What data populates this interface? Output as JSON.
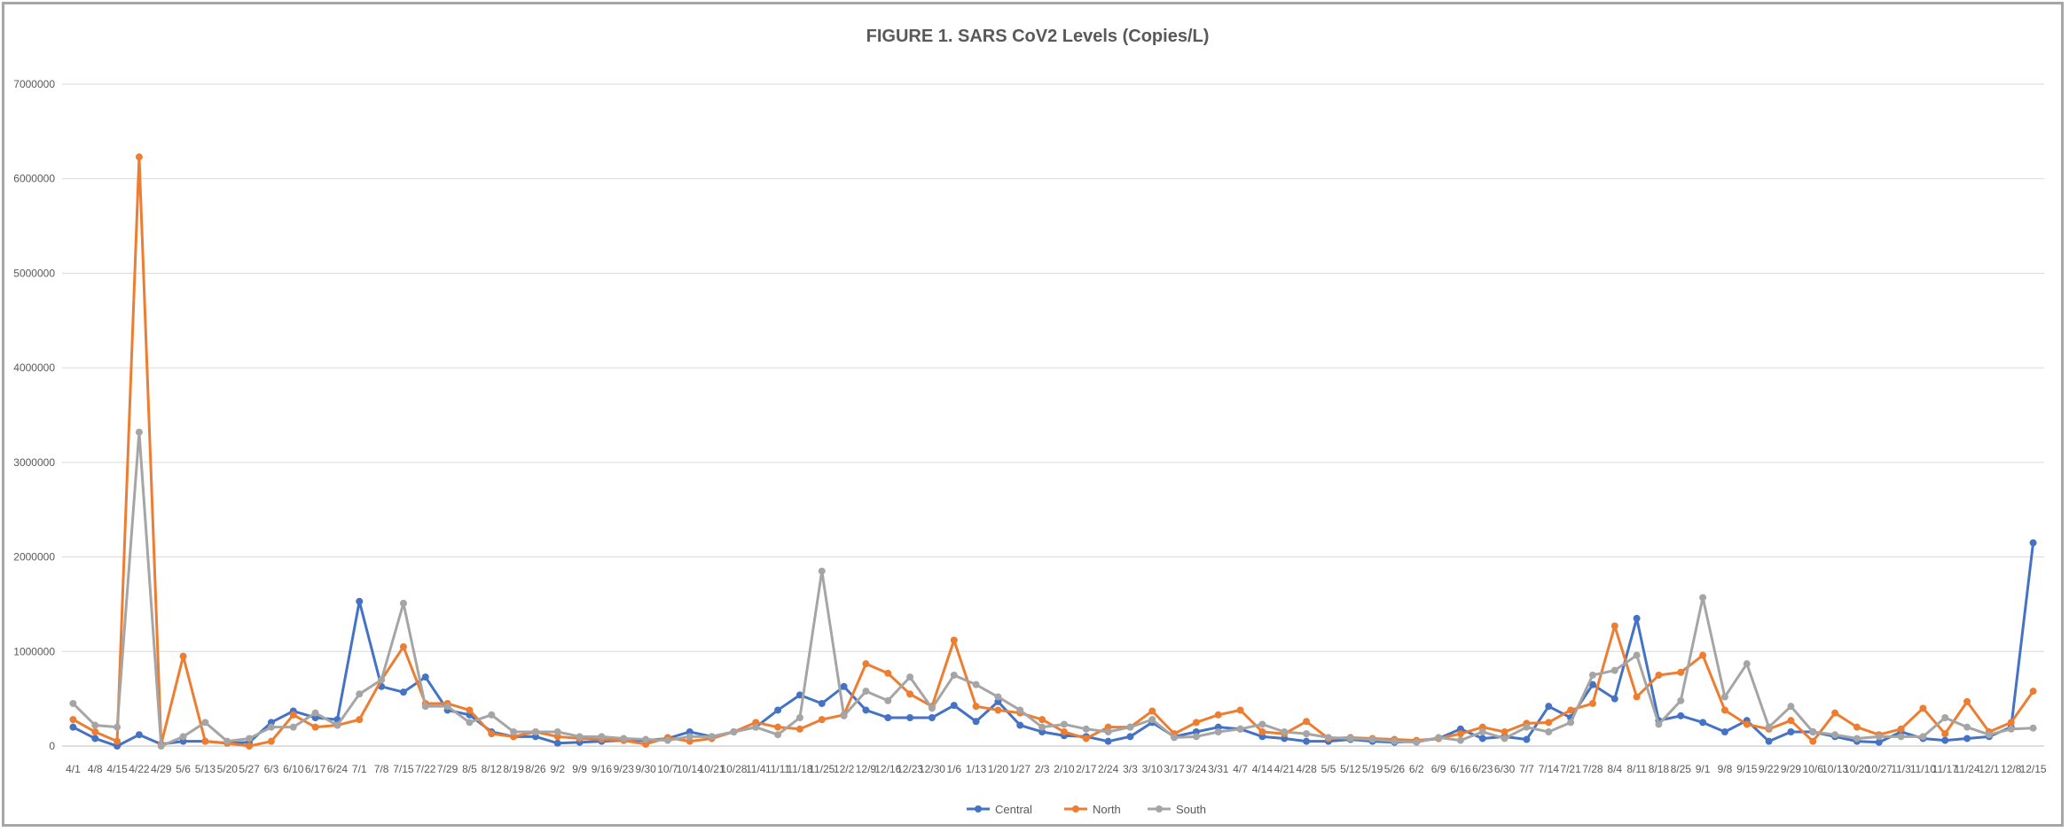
{
  "chart_data": {
    "type": "line",
    "title": "FIGURE 1.  SARS CoV2 Levels (Copies/L)",
    "xlabel": "",
    "ylabel": "",
    "ylim": [
      0,
      7000000
    ],
    "yticks": [
      0,
      1000000,
      2000000,
      3000000,
      4000000,
      5000000,
      6000000,
      7000000
    ],
    "ytick_labels": [
      "0",
      "1000000",
      "2000000",
      "3000000",
      "4000000",
      "5000000",
      "6000000",
      "7000000"
    ],
    "grid": true,
    "legend_position": "bottom",
    "categories": [
      "4/1",
      "4/8",
      "4/15",
      "4/22",
      "4/29",
      "5/6",
      "5/13",
      "5/20",
      "5/27",
      "6/3",
      "6/10",
      "6/17",
      "6/24",
      "7/1",
      "7/8",
      "7/15",
      "7/22",
      "7/29",
      "8/5",
      "8/12",
      "8/19",
      "8/26",
      "9/2",
      "9/9",
      "9/16",
      "9/23",
      "9/30",
      "10/7",
      "10/14",
      "10/21",
      "10/28",
      "11/4",
      "11/11",
      "11/18",
      "11/25",
      "12/2",
      "12/9",
      "12/16",
      "12/23",
      "12/30",
      "1/6",
      "1/13",
      "1/20",
      "1/27",
      "2/3",
      "2/10",
      "2/17",
      "2/24",
      "3/3",
      "3/10",
      "3/17",
      "3/24",
      "3/31",
      "4/7",
      "4/14",
      "4/21",
      "4/28",
      "5/5",
      "5/12",
      "5/19",
      "5/26",
      "6/2",
      "6/9",
      "6/16",
      "6/23",
      "6/30",
      "7/7",
      "7/14",
      "7/21",
      "7/28",
      "8/4",
      "8/11",
      "8/18",
      "8/25",
      "9/1",
      "9/8",
      "9/15",
      "9/22",
      "9/29",
      "10/6",
      "10/13",
      "10/20",
      "10/27",
      "11/3",
      "11/10",
      "11/17",
      "11/24",
      "12/1",
      "12/8",
      "12/15"
    ],
    "series": [
      {
        "name": "Central",
        "color": "#4472c4",
        "values": [
          200000,
          80000,
          0,
          120000,
          20000,
          50000,
          50000,
          30000,
          40000,
          250000,
          370000,
          300000,
          280000,
          1530000,
          630000,
          570000,
          730000,
          380000,
          330000,
          150000,
          100000,
          100000,
          30000,
          40000,
          50000,
          60000,
          60000,
          80000,
          150000,
          100000,
          150000,
          200000,
          380000,
          540000,
          450000,
          630000,
          380000,
          300000,
          300000,
          300000,
          430000,
          260000,
          470000,
          220000,
          150000,
          110000,
          100000,
          50000,
          100000,
          250000,
          100000,
          150000,
          200000,
          180000,
          100000,
          80000,
          50000,
          50000,
          70000,
          50000,
          40000,
          50000,
          80000,
          180000,
          80000,
          100000,
          70000,
          420000,
          300000,
          650000,
          500000,
          1350000,
          270000,
          320000,
          250000,
          150000,
          270000,
          50000,
          150000,
          150000,
          100000,
          50000,
          40000,
          150000,
          80000,
          60000,
          80000,
          100000,
          200000,
          2150000
        ]
      },
      {
        "name": "North",
        "color": "#ed7d31",
        "values": [
          280000,
          150000,
          50000,
          6230000,
          20000,
          950000,
          50000,
          30000,
          0,
          50000,
          330000,
          200000,
          220000,
          280000,
          700000,
          1050000,
          450000,
          450000,
          380000,
          130000,
          100000,
          150000,
          100000,
          80000,
          70000,
          60000,
          20000,
          90000,
          50000,
          80000,
          150000,
          250000,
          200000,
          180000,
          280000,
          330000,
          870000,
          770000,
          550000,
          420000,
          1120000,
          420000,
          380000,
          350000,
          280000,
          150000,
          80000,
          200000,
          200000,
          370000,
          130000,
          250000,
          330000,
          380000,
          150000,
          130000,
          260000,
          80000,
          90000,
          80000,
          70000,
          60000,
          80000,
          130000,
          200000,
          150000,
          240000,
          250000,
          380000,
          450000,
          1270000,
          520000,
          750000,
          780000,
          960000,
          380000,
          230000,
          180000,
          270000,
          50000,
          350000,
          200000,
          120000,
          180000,
          400000,
          130000,
          470000,
          150000,
          250000,
          580000
        ]
      },
      {
        "name": "South",
        "color": "#a5a5a5",
        "values": [
          450000,
          220000,
          200000,
          3320000,
          0,
          100000,
          250000,
          50000,
          80000,
          200000,
          200000,
          350000,
          220000,
          550000,
          700000,
          1510000,
          420000,
          420000,
          250000,
          330000,
          150000,
          150000,
          150000,
          100000,
          100000,
          80000,
          70000,
          60000,
          100000,
          100000,
          150000,
          200000,
          120000,
          300000,
          1850000,
          320000,
          580000,
          480000,
          730000,
          400000,
          750000,
          650000,
          520000,
          380000,
          200000,
          230000,
          180000,
          150000,
          200000,
          280000,
          90000,
          100000,
          150000,
          180000,
          230000,
          150000,
          130000,
          90000,
          80000,
          70000,
          50000,
          40000,
          90000,
          60000,
          150000,
          80000,
          200000,
          150000,
          250000,
          750000,
          800000,
          960000,
          230000,
          480000,
          1570000,
          520000,
          870000,
          200000,
          420000,
          150000,
          120000,
          80000,
          100000,
          100000,
          100000,
          300000,
          200000,
          120000,
          180000,
          190000
        ]
      }
    ]
  }
}
